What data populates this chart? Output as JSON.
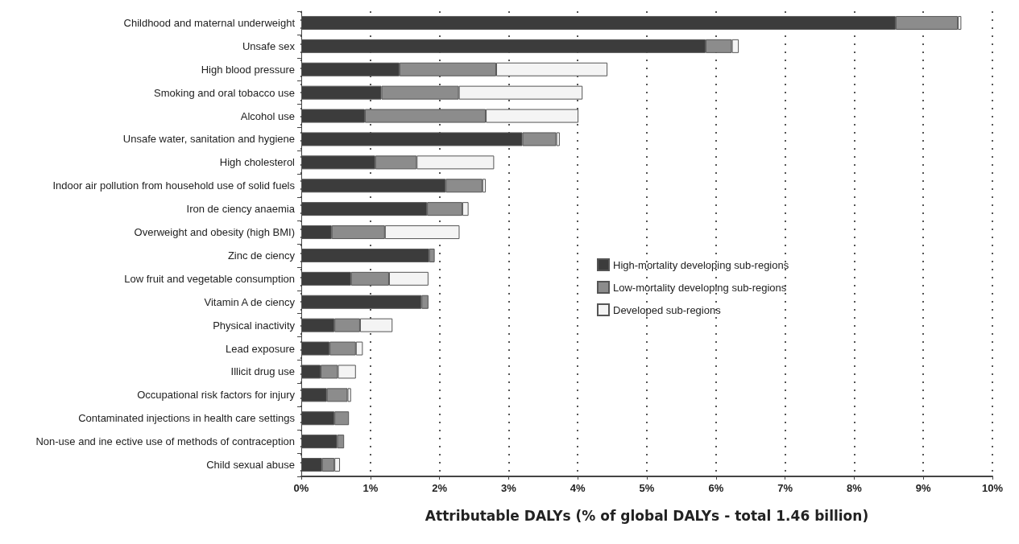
{
  "chart_data": {
    "type": "bar",
    "orientation": "horizontal",
    "stacked": true,
    "xlabel": "Attributable DALYs (% of global DALYs - total 1.46 billion)",
    "categories": [
      "Childhood and maternal underweight",
      "Unsafe sex",
      "High blood pressure",
      "Smoking and oral tobacco use",
      "Alcohol use",
      "Unsafe water, sanitation and hygiene",
      "High cholesterol",
      "Indoor air pollution from household use of solid fuels",
      "Iron de ciency anaemia",
      "Overweight and obesity (high BMI)",
      "Zinc de ciency",
      "Low fruit and vegetable consumption",
      "Vitamin A de ciency",
      "Physical inactivity",
      "Lead exposure",
      "Illicit drug use",
      "Occupational risk factors for injury",
      "Contaminated injections in health care settings",
      "Non-use and ine ective use of methods of contraception",
      "Child sexual abuse"
    ],
    "series": [
      {
        "name": "High-mortality developing sub-regions",
        "color": "#3c3c3c",
        "values": [
          8.6,
          5.85,
          1.42,
          1.16,
          0.92,
          3.2,
          1.07,
          2.09,
          1.82,
          0.44,
          1.85,
          0.72,
          1.74,
          0.48,
          0.41,
          0.28,
          0.37,
          0.48,
          0.52,
          0.3
        ]
      },
      {
        "name": "Low-mortality developing sub-regions",
        "color": "#8c8c8c",
        "values": [
          0.9,
          0.38,
          1.4,
          1.12,
          1.75,
          0.49,
          0.6,
          0.53,
          0.51,
          0.77,
          0.08,
          0.55,
          0.1,
          0.37,
          0.38,
          0.25,
          0.3,
          0.21,
          0.1,
          0.18
        ]
      },
      {
        "name": "Developed sub-regions",
        "color": "#f4f4f4",
        "values": [
          0.05,
          0.1,
          1.61,
          1.79,
          1.34,
          0.05,
          1.12,
          0.05,
          0.09,
          1.08,
          null,
          0.57,
          null,
          0.47,
          0.1,
          0.26,
          0.05,
          null,
          null,
          0.08
        ]
      }
    ],
    "xlim": [
      0,
      10
    ],
    "xticks": [
      {
        "value": 0,
        "label": "0%"
      },
      {
        "value": 1,
        "label": "1%"
      },
      {
        "value": 2,
        "label": "2%"
      },
      {
        "value": 3,
        "label": "3%"
      },
      {
        "value": 4,
        "label": "4%"
      },
      {
        "value": 5,
        "label": "5%"
      },
      {
        "value": 6,
        "label": "6%"
      },
      {
        "value": 7,
        "label": "7%"
      },
      {
        "value": 8,
        "label": "8%"
      },
      {
        "value": 9,
        "label": "9%"
      },
      {
        "value": 10,
        "label": "10%"
      }
    ],
    "grid": "x",
    "legend": "right"
  }
}
